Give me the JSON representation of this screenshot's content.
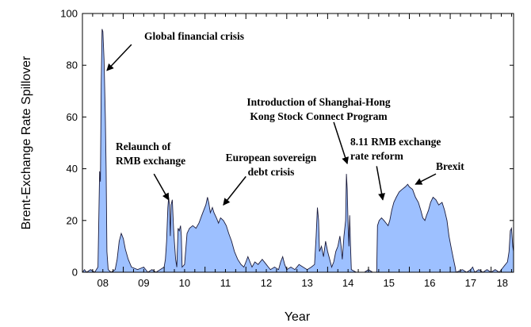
{
  "chart_data": {
    "type": "area",
    "title": "",
    "xlabel": "Year",
    "ylabel": "Brent-Exchange Rate Spillover",
    "xlim": [
      2008.0,
      2018.55
    ],
    "ylim": [
      0,
      100
    ],
    "yticks": [
      0,
      20,
      40,
      60,
      80,
      100
    ],
    "xticks": [
      {
        "value": 2008.0,
        "label": "08"
      },
      {
        "value": 2009.0,
        "label": "09"
      },
      {
        "value": 2010.0,
        "label": "10"
      },
      {
        "value": 2011.0,
        "label": "11"
      },
      {
        "value": 2012.0,
        "label": "12"
      },
      {
        "value": 2013.0,
        "label": "13"
      },
      {
        "value": 2014.0,
        "label": "14"
      },
      {
        "value": 2015.0,
        "label": "15"
      },
      {
        "value": 2016.0,
        "label": "16"
      },
      {
        "value": 2017.0,
        "label": "17"
      },
      {
        "value": 2018.0,
        "label": "18"
      }
    ],
    "fill_color": "#9dc0ff",
    "line_color": "#1a1a3a",
    "series": [
      {
        "name": "Brent-Exchange Rate Spillover",
        "points": [
          [
            2008.0,
            0
          ],
          [
            2008.05,
            1
          ],
          [
            2008.1,
            0
          ],
          [
            2008.2,
            1
          ],
          [
            2008.3,
            0
          ],
          [
            2008.38,
            2
          ],
          [
            2008.42,
            39
          ],
          [
            2008.44,
            35
          ],
          [
            2008.46,
            73
          ],
          [
            2008.48,
            94
          ],
          [
            2008.5,
            93
          ],
          [
            2008.53,
            82
          ],
          [
            2008.56,
            60
          ],
          [
            2008.58,
            40
          ],
          [
            2008.6,
            8
          ],
          [
            2008.63,
            1
          ],
          [
            2008.7,
            0
          ],
          [
            2008.8,
            1
          ],
          [
            2008.85,
            5
          ],
          [
            2008.9,
            12
          ],
          [
            2008.95,
            15
          ],
          [
            2009.0,
            13
          ],
          [
            2009.05,
            9
          ],
          [
            2009.12,
            5
          ],
          [
            2009.2,
            2
          ],
          [
            2009.35,
            1
          ],
          [
            2009.5,
            2
          ],
          [
            2009.6,
            0
          ],
          [
            2009.7,
            1
          ],
          [
            2009.8,
            0
          ],
          [
            2009.9,
            1
          ],
          [
            2010.0,
            2
          ],
          [
            2010.03,
            5
          ],
          [
            2010.06,
            12
          ],
          [
            2010.09,
            25
          ],
          [
            2010.11,
            29
          ],
          [
            2010.13,
            26
          ],
          [
            2010.15,
            14
          ],
          [
            2010.17,
            26
          ],
          [
            2010.2,
            28
          ],
          [
            2010.23,
            17
          ],
          [
            2010.25,
            12
          ],
          [
            2010.28,
            5
          ],
          [
            2010.31,
            2
          ],
          [
            2010.34,
            17
          ],
          [
            2010.37,
            16
          ],
          [
            2010.4,
            18
          ],
          [
            2010.42,
            14
          ],
          [
            2010.44,
            2
          ],
          [
            2010.5,
            3
          ],
          [
            2010.56,
            15
          ],
          [
            2010.62,
            17
          ],
          [
            2010.7,
            18
          ],
          [
            2010.78,
            17
          ],
          [
            2010.85,
            19
          ],
          [
            2010.92,
            22
          ],
          [
            2010.97,
            24
          ],
          [
            2011.02,
            26
          ],
          [
            2011.06,
            29
          ],
          [
            2011.09,
            27
          ],
          [
            2011.13,
            23
          ],
          [
            2011.18,
            25
          ],
          [
            2011.22,
            23
          ],
          [
            2011.28,
            21
          ],
          [
            2011.33,
            19
          ],
          [
            2011.38,
            21
          ],
          [
            2011.45,
            20
          ],
          [
            2011.52,
            18
          ],
          [
            2011.58,
            15
          ],
          [
            2011.65,
            12
          ],
          [
            2011.72,
            8
          ],
          [
            2011.8,
            5
          ],
          [
            2011.88,
            3
          ],
          [
            2011.95,
            2
          ],
          [
            2012.0,
            4
          ],
          [
            2012.05,
            6
          ],
          [
            2012.1,
            4
          ],
          [
            2012.15,
            2
          ],
          [
            2012.22,
            4
          ],
          [
            2012.3,
            3
          ],
          [
            2012.4,
            5
          ],
          [
            2012.5,
            3
          ],
          [
            2012.55,
            2
          ],
          [
            2012.6,
            1
          ],
          [
            2012.7,
            2
          ],
          [
            2012.8,
            1
          ],
          [
            2012.85,
            4
          ],
          [
            2012.9,
            6
          ],
          [
            2012.95,
            3
          ],
          [
            2013.0,
            1
          ],
          [
            2013.1,
            2
          ],
          [
            2013.2,
            1
          ],
          [
            2013.3,
            3
          ],
          [
            2013.4,
            2
          ],
          [
            2013.5,
            1
          ],
          [
            2013.6,
            2
          ],
          [
            2013.68,
            3
          ],
          [
            2013.72,
            14
          ],
          [
            2013.75,
            25
          ],
          [
            2013.78,
            20
          ],
          [
            2013.8,
            8
          ],
          [
            2013.85,
            10
          ],
          [
            2013.9,
            6
          ],
          [
            2013.95,
            12
          ],
          [
            2014.0,
            8
          ],
          [
            2014.05,
            5
          ],
          [
            2014.1,
            2
          ],
          [
            2014.15,
            4
          ],
          [
            2014.2,
            8
          ],
          [
            2014.25,
            10
          ],
          [
            2014.3,
            14
          ],
          [
            2014.33,
            10
          ],
          [
            2014.36,
            5
          ],
          [
            2014.4,
            14
          ],
          [
            2014.44,
            20
          ],
          [
            2014.46,
            38
          ],
          [
            2014.48,
            32
          ],
          [
            2014.5,
            18
          ],
          [
            2014.52,
            10
          ],
          [
            2014.54,
            22
          ],
          [
            2014.56,
            10
          ],
          [
            2014.58,
            1
          ],
          [
            2014.7,
            0
          ],
          [
            2014.9,
            0
          ],
          [
            2015.0,
            1
          ],
          [
            2015.1,
            0
          ],
          [
            2015.2,
            0
          ],
          [
            2015.22,
            18
          ],
          [
            2015.26,
            20
          ],
          [
            2015.32,
            21
          ],
          [
            2015.38,
            20
          ],
          [
            2015.43,
            19
          ],
          [
            2015.48,
            18
          ],
          [
            2015.52,
            20
          ],
          [
            2015.57,
            24
          ],
          [
            2015.62,
            27
          ],
          [
            2015.68,
            29
          ],
          [
            2015.75,
            31
          ],
          [
            2015.82,
            32
          ],
          [
            2015.9,
            33
          ],
          [
            2015.96,
            34
          ],
          [
            2016.0,
            33
          ],
          [
            2016.08,
            32
          ],
          [
            2016.15,
            29
          ],
          [
            2016.22,
            27
          ],
          [
            2016.28,
            24
          ],
          [
            2016.33,
            21
          ],
          [
            2016.38,
            20
          ],
          [
            2016.42,
            22
          ],
          [
            2016.47,
            24
          ],
          [
            2016.52,
            27
          ],
          [
            2016.58,
            29
          ],
          [
            2016.65,
            28
          ],
          [
            2016.72,
            26
          ],
          [
            2016.8,
            27
          ],
          [
            2016.86,
            24
          ],
          [
            2016.92,
            20
          ],
          [
            2016.97,
            14
          ],
          [
            2017.03,
            9
          ],
          [
            2017.08,
            5
          ],
          [
            2017.12,
            2
          ],
          [
            2017.14,
            0
          ],
          [
            2017.3,
            1
          ],
          [
            2017.4,
            0
          ],
          [
            2017.5,
            1
          ],
          [
            2017.55,
            2
          ],
          [
            2017.6,
            0
          ],
          [
            2017.7,
            1
          ],
          [
            2017.8,
            0
          ],
          [
            2017.9,
            1
          ],
          [
            2018.0,
            0
          ],
          [
            2018.1,
            1
          ],
          [
            2018.2,
            0
          ],
          [
            2018.3,
            2
          ],
          [
            2018.4,
            4
          ],
          [
            2018.44,
            8
          ],
          [
            2018.47,
            16
          ],
          [
            2018.5,
            17
          ],
          [
            2018.53,
            10
          ],
          [
            2018.55,
            8
          ]
        ]
      }
    ],
    "annotations": [
      {
        "lines": [
          "Global financial crisis"
        ],
        "arrow_from": [
          2009.2,
          88
        ],
        "arrow_to": [
          2008.6,
          78
        ]
      },
      {
        "lines": [
          "Relaunch of",
          "RMB exchange"
        ],
        "arrow_from": [
          2009.75,
          38
        ],
        "arrow_to": [
          2010.11,
          28
        ]
      },
      {
        "lines": [
          "European sovereign",
          "debt crisis"
        ],
        "arrow_from": [
          2012.0,
          37
        ],
        "arrow_to": [
          2011.45,
          26
        ]
      },
      {
        "lines": [
          "Introduction of Shanghai-Hong",
          "Kong Stock Connect Program"
        ],
        "arrow_from": [
          2014.15,
          58
        ],
        "arrow_to": [
          2014.48,
          42
        ]
      },
      {
        "lines": [
          "8.11 RMB exchange",
          "rate reform"
        ],
        "arrow_from": [
          2015.2,
          41
        ],
        "arrow_to": [
          2015.35,
          28
        ]
      },
      {
        "lines": [
          "Brexit"
        ],
        "arrow_from": [
          2016.65,
          38
        ],
        "arrow_to": [
          2016.15,
          34
        ]
      }
    ]
  }
}
